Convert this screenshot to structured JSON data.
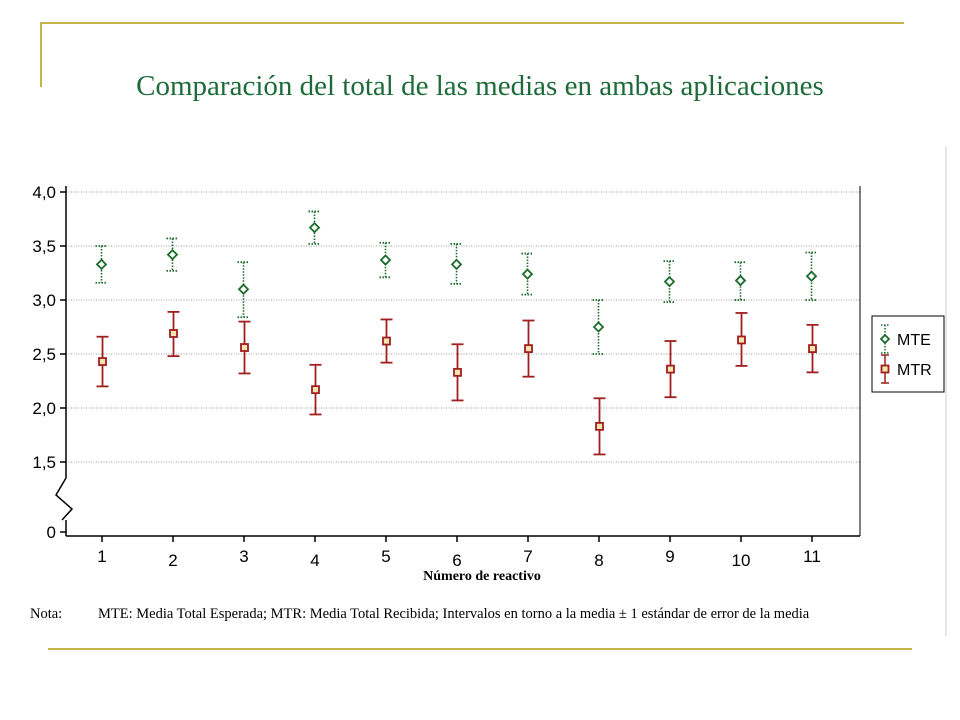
{
  "slide": {
    "title": "Comparación del total de las medias en ambas aplicaciones",
    "accent_color": "#c8b24a",
    "title_color": "#1e6b3a"
  },
  "note": {
    "label": "Nota:",
    "text": "MTE: Media Total Esperada; MTR: Media Total Recibida; Intervalos en torno a la media ± 1 estándar de error de la media"
  },
  "chart_data": {
    "type": "scatter",
    "title": "",
    "xlabel": "Número de reactivo",
    "ylabel": "",
    "categories": [
      "1",
      "2",
      "3",
      "4",
      "5",
      "6",
      "7",
      "8",
      "9",
      "10",
      "11"
    ],
    "ylim": [
      0,
      4.0
    ],
    "axis_break": true,
    "yticks": [
      {
        "value": 0,
        "label": "0"
      },
      {
        "value": 1.5,
        "label": "1,5"
      },
      {
        "value": 2.0,
        "label": "2,0"
      },
      {
        "value": 2.5,
        "label": "2,5"
      },
      {
        "value": 3.0,
        "label": "3,0"
      },
      {
        "value": 3.5,
        "label": "3,5"
      },
      {
        "value": 4.0,
        "label": "4,0"
      }
    ],
    "grid": true,
    "legend_position": "right",
    "series": [
      {
        "name": "MTE",
        "marker": "diamond",
        "color": "#1b6b2a",
        "error_style": "dotted",
        "values": [
          3.33,
          3.42,
          3.1,
          3.67,
          3.37,
          3.33,
          3.24,
          2.75,
          3.17,
          3.18,
          3.22
        ],
        "lower": [
          3.16,
          3.27,
          2.84,
          3.52,
          3.21,
          3.15,
          3.05,
          2.5,
          2.98,
          3.0,
          3.0
        ],
        "upper": [
          3.5,
          3.57,
          3.35,
          3.82,
          3.53,
          3.52,
          3.43,
          3.0,
          3.36,
          3.35,
          3.44
        ]
      },
      {
        "name": "MTR",
        "marker": "square",
        "color": "#a01e1e",
        "error_style": "solid",
        "values": [
          2.43,
          2.69,
          2.56,
          2.17,
          2.62,
          2.33,
          2.55,
          1.83,
          2.36,
          2.63,
          2.55
        ],
        "lower": [
          2.2,
          2.48,
          2.32,
          1.94,
          2.42,
          2.07,
          2.29,
          1.57,
          2.1,
          2.39,
          2.33
        ],
        "upper": [
          2.66,
          2.89,
          2.8,
          2.4,
          2.82,
          2.59,
          2.81,
          2.09,
          2.62,
          2.88,
          2.77
        ]
      }
    ]
  }
}
